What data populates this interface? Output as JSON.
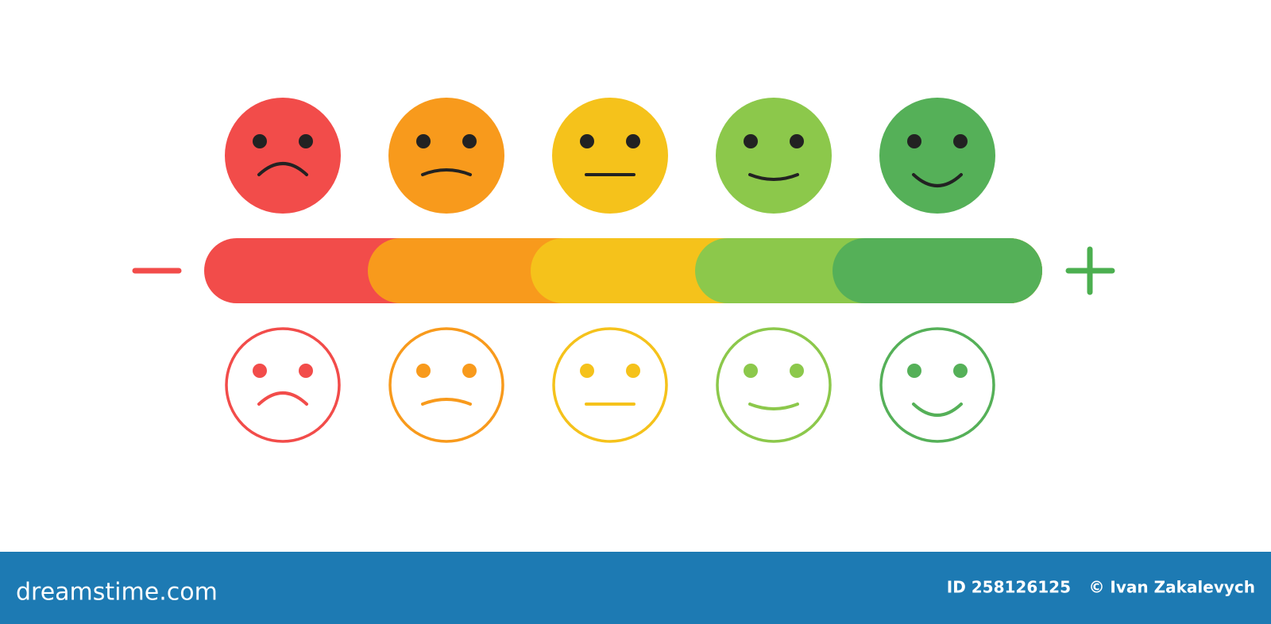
{
  "footer": {
    "brand": "dreamstime.com",
    "image_id": "ID 258126125",
    "author": "© Ivan Zakalevych"
  }
}
